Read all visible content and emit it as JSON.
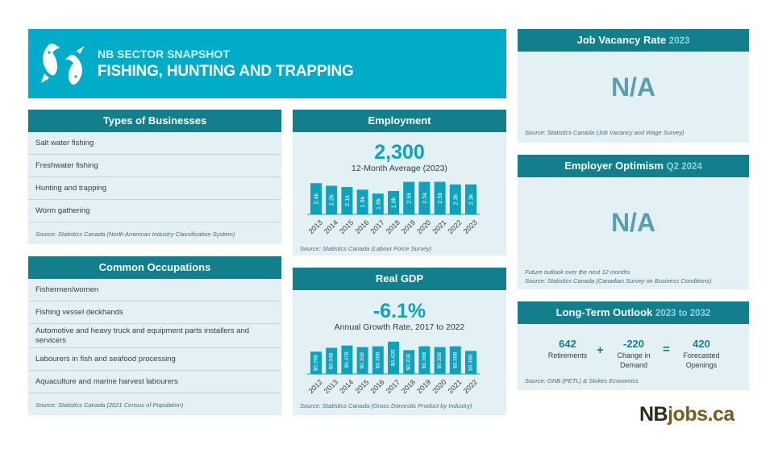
{
  "hero": {
    "kicker": "NB SECTOR SNAPSHOT",
    "title": "FISHING, HUNTING AND TRAPPING",
    "icon": "fish-icon"
  },
  "types_of_businesses": {
    "title": "Types of Businesses",
    "items": [
      "Salt water fishing",
      "Freshwater fishing",
      "Hunting and trapping",
      "Worm gathering"
    ],
    "source": "Source: Statistics Canada (North American Industry Classification System)"
  },
  "common_occupations": {
    "title": "Common Occupations",
    "items": [
      "Fishermen/women",
      "Fishing vessel deckhands",
      "Automotive and heavy truck and equipment parts installers and servicers",
      "Labourers in fish and seafood processing",
      "Aquaculture and marine harvest labourers"
    ],
    "source": "Source: Statistics Canada (2021 Census of Population)"
  },
  "employment": {
    "title": "Employment",
    "value": "2,300",
    "caption": "12-Month Average (2023)",
    "source": "Source: Statistics Canada (Labour Force Survey)"
  },
  "real_gdp": {
    "title": "Real GDP",
    "value": "-6.1%",
    "caption": "Annual Growth Rate, 2017 to 2022",
    "source": "Source: Statistics Canada (Gross Domestic Product by Industry)"
  },
  "job_vacancy": {
    "title": "Job Vacancy Rate",
    "year": "2023",
    "value": "N/A",
    "source": "Source: Statistics Canada (Job Vacancy and Wage Survey)"
  },
  "employer_optimism": {
    "title": "Employer Optimism",
    "period": "Q2 2024",
    "value": "N/A",
    "note": "Future outlook over the next 12 months",
    "source": "Source: Statistics Canada (Canadian Survey on Business Conditions)"
  },
  "long_term_outlook": {
    "title": "Long-Term Outlook",
    "period": "2023 to 2032",
    "retirements_value": "642",
    "retirements_label": "Retirements",
    "plus": "+",
    "equals": "=",
    "change_value": "-220",
    "change_label": "Change in Demand",
    "openings_value": "420",
    "openings_label": "Forecasted Openings",
    "source": "Source: GNB (PETL) & Stokes Economics"
  },
  "logo": {
    "part1": "NB",
    "part2": "jobs.ca"
  },
  "colors": {
    "hero": "#00acc8",
    "header": "#137f8c",
    "bar": "#0ea2bd",
    "panel": "#e3f1f5"
  },
  "chart_data": [
    {
      "type": "bar",
      "name": "employment",
      "categories": [
        "2013",
        "2014",
        "2015",
        "2016",
        "2017",
        "2018",
        "2019",
        "2020",
        "2021",
        "2022",
        "2023"
      ],
      "values": [
        2.4,
        2.2,
        2.1,
        1.9,
        1.6,
        1.8,
        2.5,
        2.5,
        2.5,
        2.3,
        2.3
      ],
      "labels": [
        "2.4k",
        "2.2k",
        "2.1k",
        "1.9k",
        "1.6k",
        "1.8k",
        "2.5k",
        "2.5k",
        "2.5k",
        "2.3k",
        "2.3k"
      ],
      "ylim": [
        0,
        2.6
      ]
    },
    {
      "type": "bar",
      "name": "real_gdp",
      "categories": [
        "2012",
        "2013",
        "2014",
        "2015",
        "2016",
        "2017",
        "2018",
        "2019",
        "2020",
        "2021",
        "2022"
      ],
      "values": [
        0.29,
        0.34,
        0.37,
        0.35,
        0.36,
        0.42,
        0.31,
        0.36,
        0.35,
        0.36,
        0.3
      ],
      "labels": [
        "$0.29B",
        "$0.34B",
        "$0.37B",
        "$0.35B",
        "$0.36B",
        "$0.42B",
        "$0.31B",
        "$0.36B",
        "$0.35B",
        "$0.36B",
        "$0.30B"
      ],
      "ylim": [
        0,
        0.44
      ]
    }
  ]
}
